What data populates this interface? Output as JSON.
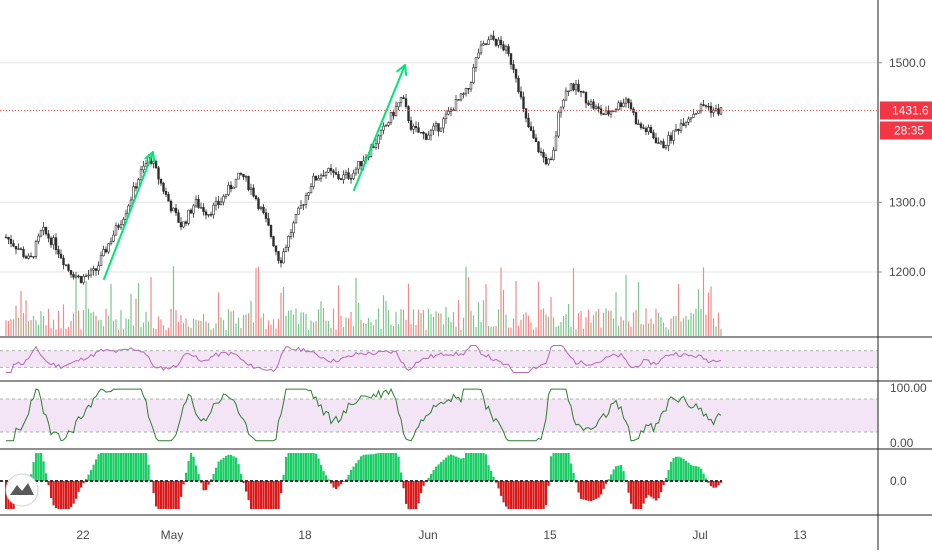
{
  "chart_data": {
    "type": "candlestick",
    "price_axis": {
      "ticks": [
        {
          "value": 1200,
          "label": "1200.0"
        },
        {
          "value": 1300,
          "label": "1300.0"
        },
        {
          "value": 1500,
          "label": "1500.0"
        }
      ]
    },
    "last_price": {
      "label": "1431.6",
      "countdown": "28:35",
      "color": "#f23645"
    },
    "date_axis": {
      "labels": [
        "22",
        "May",
        "18",
        "Jun",
        "15",
        "Jul",
        "13"
      ]
    },
    "oscillator_1": {
      "band": [
        30,
        70
      ]
    },
    "oscillator_2": {
      "ticks": [
        {
          "value": 100,
          "label": "100.00"
        },
        {
          "value": 0,
          "label": "0.00"
        }
      ],
      "band": [
        20,
        80
      ]
    },
    "oscillator_3": {
      "ticks": [
        {
          "value": 0,
          "label": "0.0"
        }
      ]
    },
    "annotations": [
      {
        "type": "arrow",
        "pane": "price",
        "direction": "up"
      },
      {
        "type": "arrow",
        "pane": "price",
        "direction": "up"
      },
      {
        "type": "arrow",
        "pane": "oscillator_2",
        "direction": "up"
      }
    ],
    "colors": {
      "up": "#26a69a",
      "down": "#ef5350",
      "candle": "#2b2b2b",
      "volume_up": "#7dc48f",
      "volume_down": "#f08a8a",
      "rsi_line": "#b06ab3",
      "band_fill": "#f3e5f5",
      "stoch_line": "#2e7d32",
      "histo_up": "#00c853",
      "histo_down": "#d50000",
      "arrow": "#00e676",
      "axis_text": "#4a4a4a",
      "grid": "#e6e6e6"
    },
    "logo": "tradingview-logo-icon"
  }
}
